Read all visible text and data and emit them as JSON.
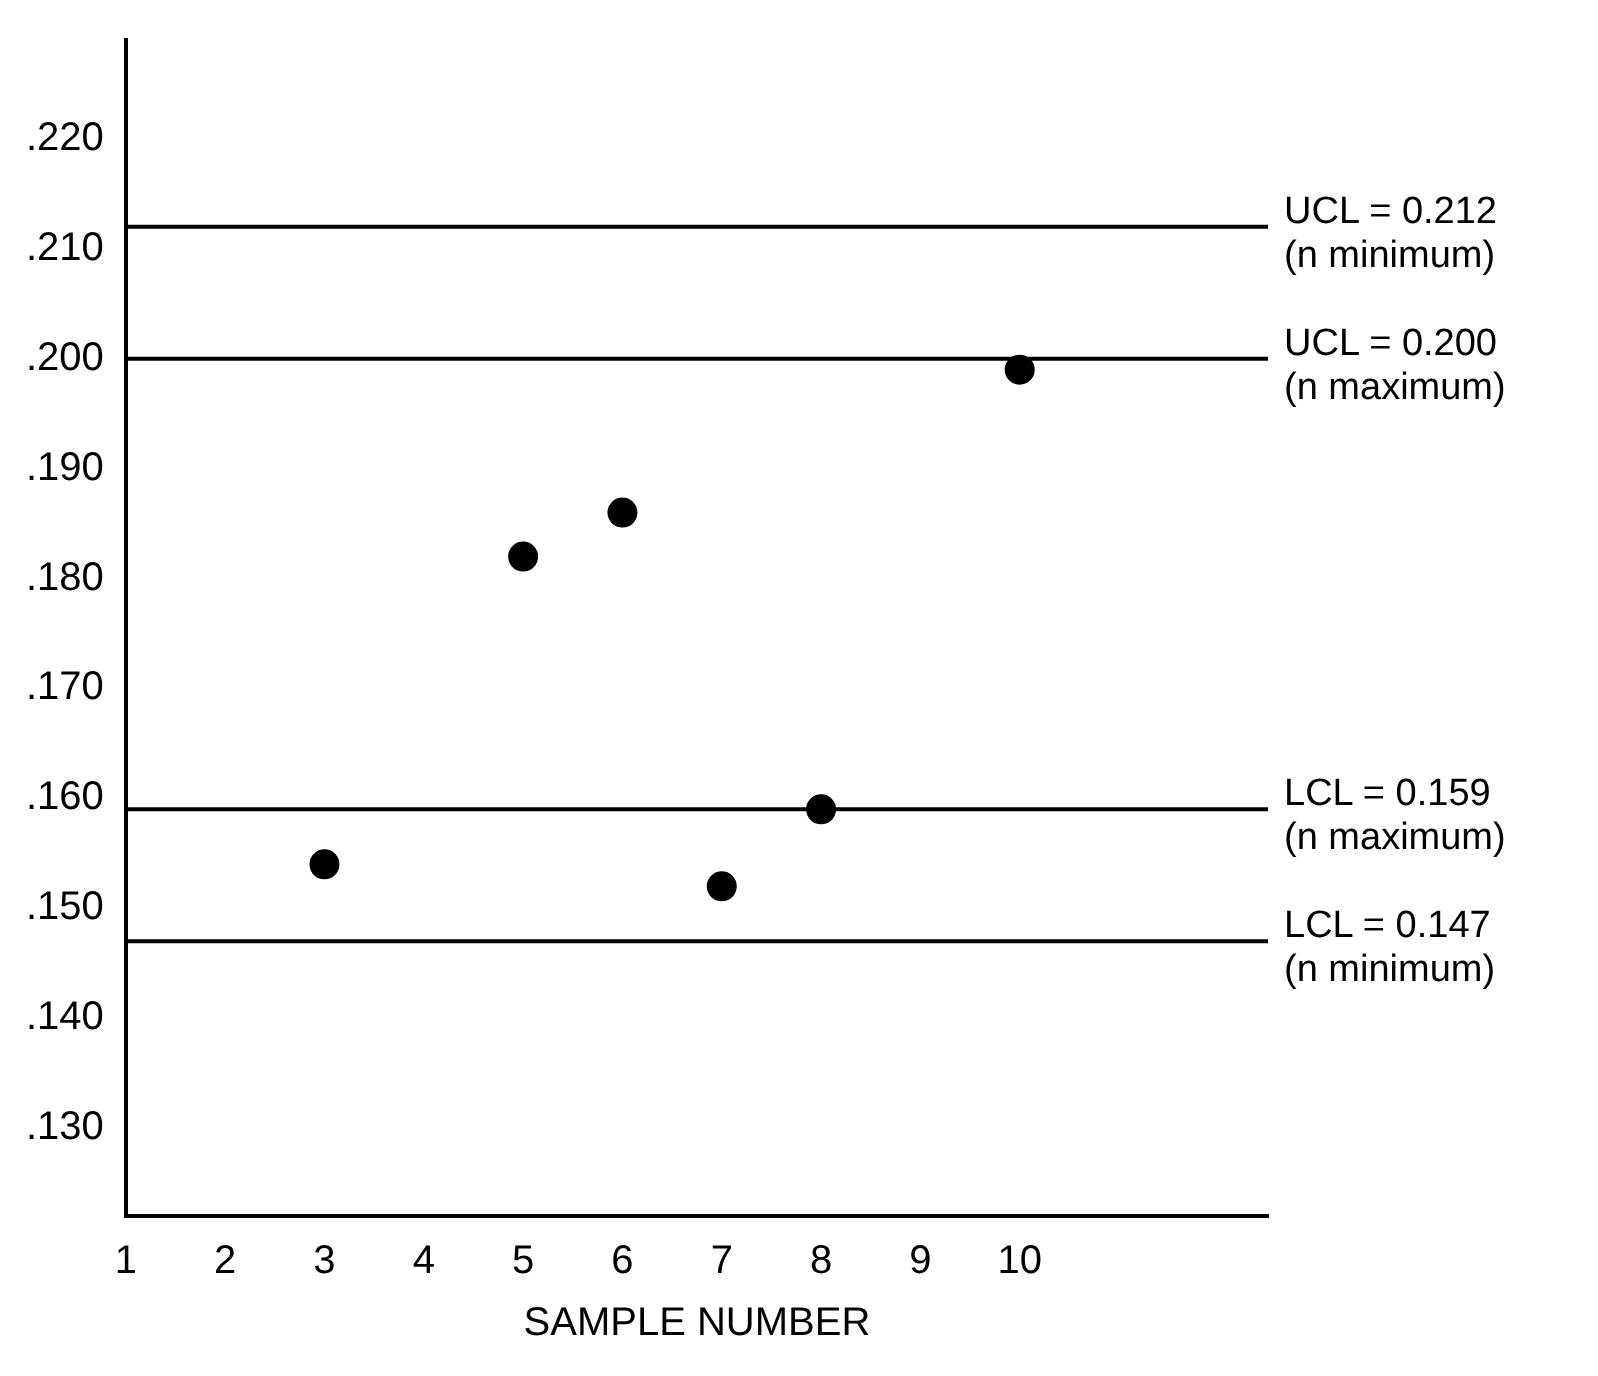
{
  "chart_data": {
    "type": "scatter",
    "xlabel": "SAMPLE NUMBER",
    "x": [
      3,
      5,
      6,
      7,
      8,
      10
    ],
    "series": [
      {
        "color": "#000000",
        "values": [
          0.154,
          0.182,
          0.186,
          0.152,
          0.159,
          0.199
        ]
      }
    ],
    "marker": "circle",
    "grid": false,
    "xlim": [
      1,
      12.5
    ],
    "xticks": [
      1,
      2,
      3,
      4,
      5,
      6,
      7,
      8,
      9,
      10
    ],
    "ylim": [
      0.122,
      0.229
    ],
    "yticks": [
      {
        "value": 0.13,
        "label": ".130"
      },
      {
        "value": 0.14,
        "label": ".140"
      },
      {
        "value": 0.15,
        "label": ".150"
      },
      {
        "value": 0.16,
        "label": ".160"
      },
      {
        "value": 0.17,
        "label": ".170"
      },
      {
        "value": 0.18,
        "label": ".180"
      },
      {
        "value": 0.19,
        "label": ".190"
      },
      {
        "value": 0.2,
        "label": ".200"
      },
      {
        "value": 0.21,
        "label": ".210"
      },
      {
        "value": 0.22,
        "label": ".220"
      }
    ],
    "ref_lines": [
      {
        "axis": "y",
        "value": 0.212,
        "label": "UCL = 0.212\n(n minimum)"
      },
      {
        "axis": "y",
        "value": 0.2,
        "label": "UCL = 0.200\n(n maximum)"
      },
      {
        "axis": "y",
        "value": 0.159,
        "label": "LCL = 0.159\n(n maximum)"
      },
      {
        "axis": "y",
        "value": 0.147,
        "label": "LCL = 0.147\n(n minimum)"
      }
    ]
  }
}
